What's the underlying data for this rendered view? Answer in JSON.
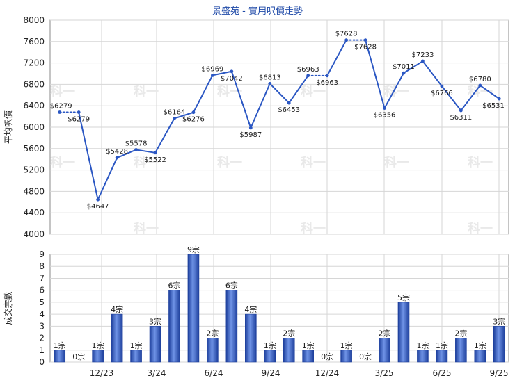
{
  "chart_data": [
    {
      "type": "line",
      "title": "景盛苑 - 實用呎價走勢",
      "ylabel": "平均呎價",
      "ylim": [
        4000,
        8000
      ],
      "yticks": [
        4000,
        4400,
        4800,
        5200,
        5600,
        6000,
        6400,
        6800,
        7200,
        7600,
        8000
      ],
      "x_tick_labels": [
        "12/23",
        "3/24",
        "6/24",
        "9/24",
        "12/24",
        "3/25",
        "6/25",
        "9/25"
      ],
      "grid": true,
      "series": [
        {
          "color": "#2b57c3",
          "values": [
            6279,
            6279,
            4647,
            5428,
            5578,
            5522,
            6164,
            6276,
            6969,
            7042,
            5987,
            6813,
            6453,
            6963,
            6963,
            7628,
            7628,
            6356,
            7011,
            7233,
            6766,
            6311,
            6780,
            6531
          ],
          "labels": [
            "$6279",
            "$6279",
            "$4647",
            "$5428",
            "$5578",
            "$5522",
            "$6164",
            "$6276",
            "$6969",
            "$7042",
            "$5987",
            "$6813",
            "$6453",
            "$6963",
            "$6963",
            "$7628",
            "$7628",
            "$6356",
            "$7011",
            "$7233",
            "$6766",
            "$6311",
            "$6780",
            "$6531"
          ],
          "dotted_segments_after_index": [
            0,
            13,
            15
          ]
        }
      ]
    },
    {
      "type": "bar",
      "ylabel": "成交宗數",
      "ylim": [
        0,
        9
      ],
      "yticks": [
        0,
        1,
        2,
        3,
        4,
        5,
        6,
        7,
        8,
        9
      ],
      "x_tick_labels": [
        "12/23",
        "3/24",
        "6/24",
        "9/24",
        "12/24",
        "3/25",
        "6/25",
        "9/25"
      ],
      "grid": true,
      "series": [
        {
          "color": "#2b57c3",
          "values": [
            1,
            0,
            1,
            4,
            1,
            3,
            6,
            9,
            2,
            6,
            4,
            1,
            2,
            1,
            0,
            1,
            0,
            2,
            5,
            1,
            1,
            2,
            1,
            3
          ],
          "labels": [
            "1宗",
            "0宗",
            "1宗",
            "4宗",
            "1宗",
            "3宗",
            "6宗",
            "9宗",
            "2宗",
            "6宗",
            "4宗",
            "1宗",
            "2宗",
            "1宗",
            "0宗",
            "1宗",
            "0宗",
            "2宗",
            "5宗",
            "1宗",
            "1宗",
            "2宗",
            "1宗",
            "3宗"
          ]
        }
      ]
    }
  ],
  "watermark": "科一"
}
